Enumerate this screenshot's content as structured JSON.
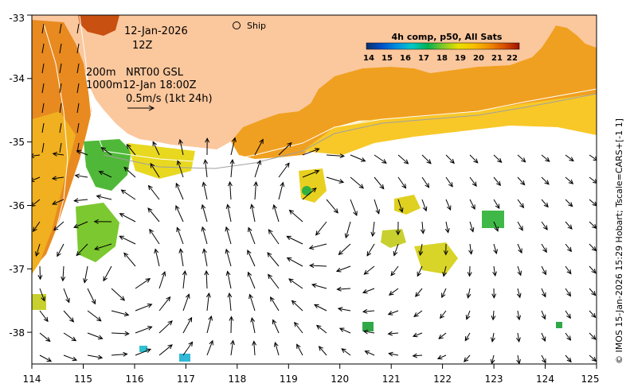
{
  "map": {
    "lon_range": [
      114,
      125
    ],
    "lat_range": [
      -38.5,
      -33
    ],
    "x_ticks": [
      "114",
      "115",
      "116",
      "117",
      "118",
      "119",
      "120",
      "121",
      "122",
      "123",
      "124",
      "125"
    ],
    "y_ticks": [
      "-33",
      "-34",
      "-35",
      "-36",
      "-37",
      "-38"
    ],
    "land_color": "#fbc79d",
    "frame_color": "#000000"
  },
  "annotations": {
    "date": "12-Jan-2026",
    "time": "12Z",
    "depth_line1": "200m",
    "depth_line2": "1000m",
    "product": "NRT00 GSL",
    "vector_time": "12-Jan 18:00Z",
    "scale_label": "0.5m/s (1kt 24h)",
    "ship_label": "Ship"
  },
  "colorbar": {
    "title": "4h comp, p50, All Sats",
    "ticks": [
      "14",
      "15",
      "16",
      "17",
      "18",
      "19",
      "20",
      "21",
      "22"
    ],
    "colors": [
      "#08306b",
      "#0050c8",
      "#0090e0",
      "#00c8c8",
      "#00b050",
      "#40c030",
      "#a0d020",
      "#f0e000",
      "#f8c800",
      "#f0a000",
      "#e07000",
      "#d04000",
      "#a01000"
    ]
  },
  "credit": "© IMOS 15-Jan-2026 15:29 Hobart; Tscale=CARS+[-1 1]"
}
